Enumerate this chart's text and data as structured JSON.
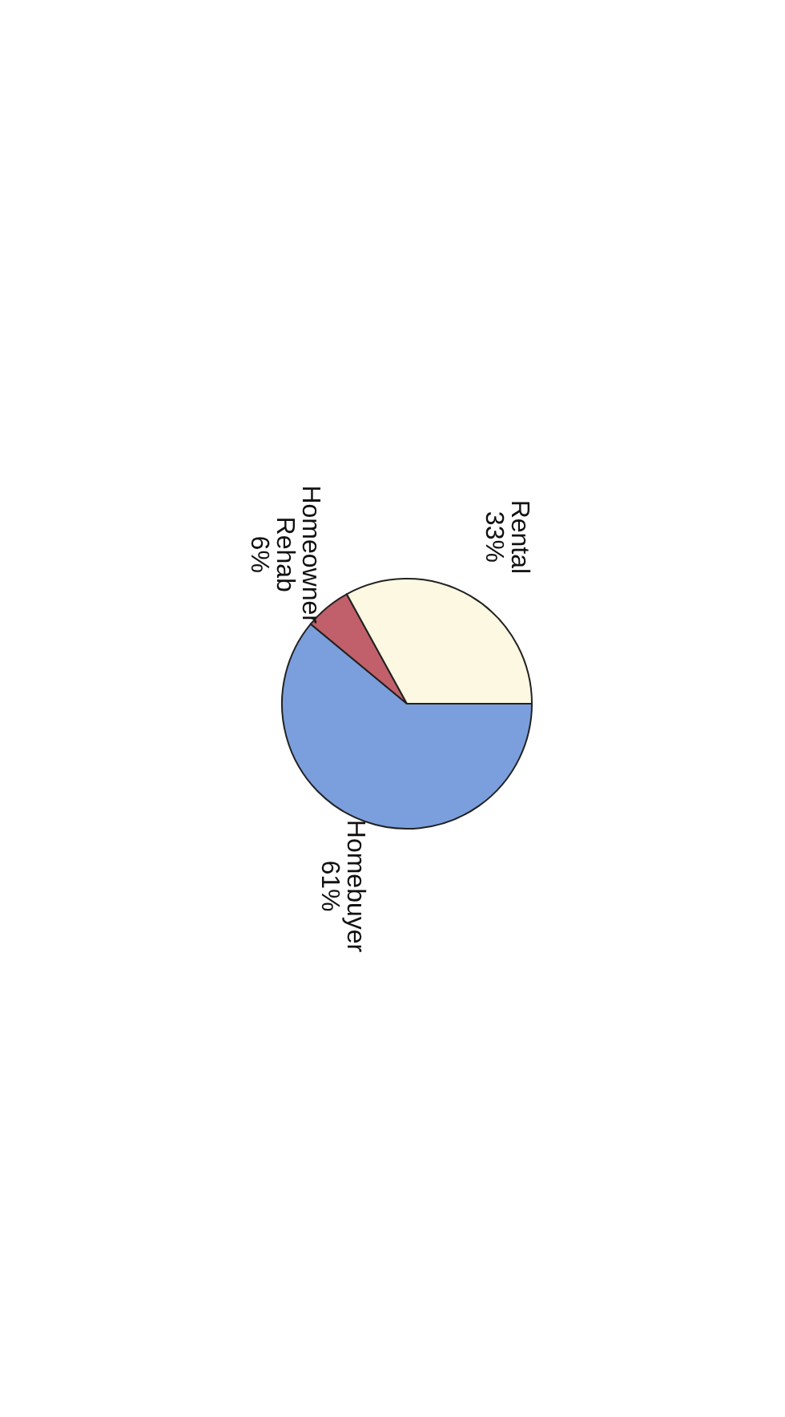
{
  "chart_data": {
    "type": "pie",
    "categories": [
      "Homebuyer",
      "Homeowner Rehab",
      "Rental"
    ],
    "values": [
      61,
      6,
      33
    ],
    "colors": [
      "#7b9fdc",
      "#c1606a",
      "#fcf8e1"
    ],
    "value_labels": [
      "61%",
      "6%",
      "33%"
    ]
  }
}
